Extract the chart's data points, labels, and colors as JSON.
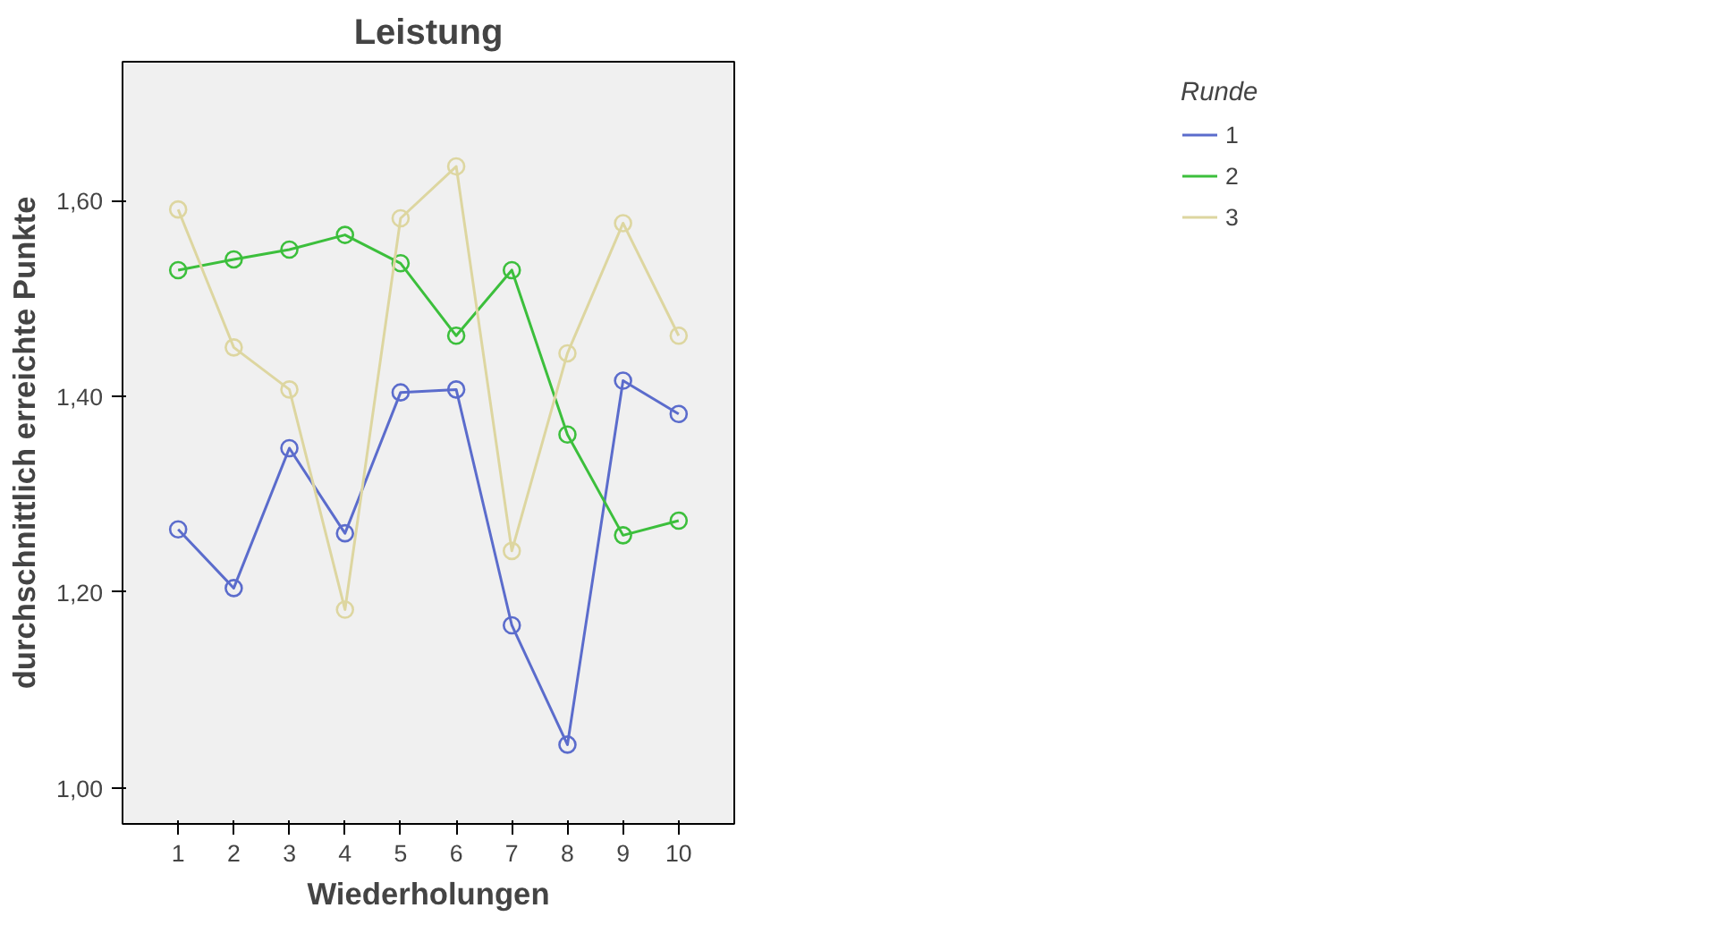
{
  "chart_data": {
    "type": "line",
    "title": "Leistung",
    "xlabel": "Wiederholungen",
    "ylabel": "durchschnittlich erreichte Punkte",
    "legend_title": "Runde",
    "legend": "top right",
    "marker": "circle",
    "line_style": "solid",
    "grid": false,
    "x": [
      1,
      2,
      3,
      4,
      5,
      6,
      7,
      8,
      9,
      10
    ],
    "xlim": [
      0,
      11
    ],
    "xticks": [
      1,
      2,
      3,
      4,
      5,
      6,
      7,
      8,
      9,
      10
    ],
    "ylim": [
      0.963,
      1.742
    ],
    "yticks": [
      {
        "value": 1.0,
        "label": "1,00"
      },
      {
        "value": 1.2,
        "label": "1,20"
      },
      {
        "value": 1.4,
        "label": "1,40"
      },
      {
        "value": 1.6,
        "label": "1,60"
      }
    ],
    "series": [
      {
        "name": "1",
        "color": "#5b6ccc",
        "values": [
          1.264,
          1.204,
          1.347,
          1.26,
          1.404,
          1.407,
          1.166,
          1.044,
          1.416,
          1.382
        ]
      },
      {
        "name": "2",
        "color": "#3cbf3c",
        "values": [
          1.529,
          1.54,
          1.55,
          1.565,
          1.536,
          1.462,
          1.529,
          1.361,
          1.258,
          1.273
        ]
      },
      {
        "name": "3",
        "color": "#ddd6a0",
        "values": [
          1.591,
          1.45,
          1.407,
          1.182,
          1.582,
          1.635,
          1.242,
          1.444,
          1.577,
          1.462
        ]
      }
    ]
  }
}
